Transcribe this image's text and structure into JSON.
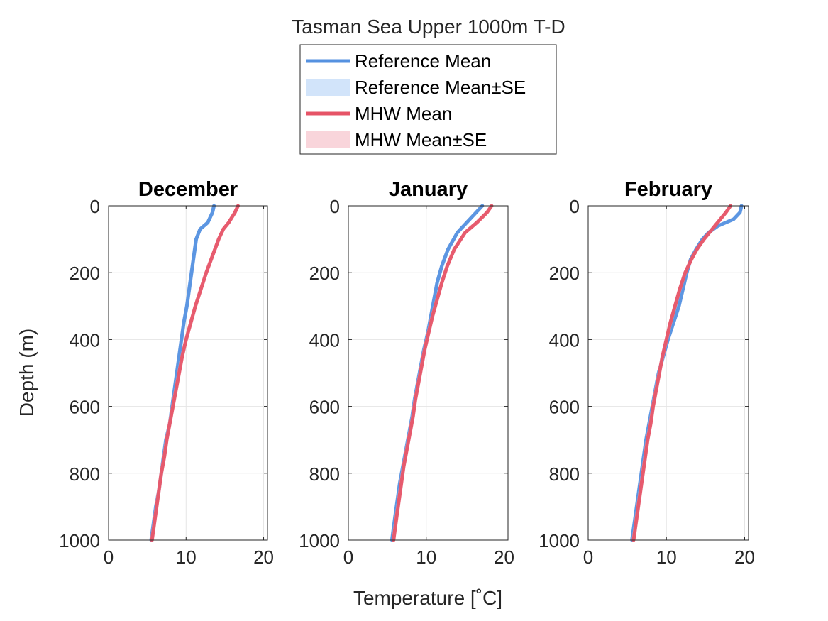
{
  "figure": {
    "title": "Tasman Sea Upper 1000m T-D",
    "xlabel": "Temperature [˚C]",
    "ylabel": "Depth (m)"
  },
  "legend": {
    "placement": "top-center",
    "entries": [
      {
        "label": "Reference Mean",
        "kind": "line",
        "color": "#5591E0"
      },
      {
        "label": "Reference Mean±SE",
        "kind": "patch",
        "color": "#D2E4FA"
      },
      {
        "label": "MHW Mean",
        "kind": "line",
        "color": "#E65467"
      },
      {
        "label": "MHW Mean±SE",
        "kind": "patch",
        "color": "#F9D5DB"
      }
    ]
  },
  "colors": {
    "reference": "#5591E0",
    "reference_se": "#C9DDF7",
    "mhw": "#E65467",
    "mhw_se": "#F6CDD4",
    "grid": "#E5E5E5",
    "axis": "#262626"
  },
  "chart_data": [
    {
      "type": "line",
      "title": "December",
      "xlim": [
        0,
        20.5
      ],
      "ylim": [
        0,
        1000
      ],
      "y_reversed": true,
      "grid": true,
      "xticks": [
        0,
        10,
        20
      ],
      "yticks": [
        0,
        200,
        400,
        600,
        800,
        1000
      ],
      "series": [
        {
          "name": "Reference Mean",
          "depth": [
            0,
            20,
            50,
            70,
            100,
            150,
            200,
            250,
            300,
            350,
            400,
            450,
            500,
            550,
            600,
            650,
            700,
            750,
            800,
            850,
            900,
            950,
            1000
          ],
          "temp": [
            13.6,
            13.4,
            12.8,
            11.8,
            11.3,
            11.0,
            10.7,
            10.4,
            10.1,
            9.7,
            9.4,
            9.1,
            8.8,
            8.5,
            8.2,
            7.9,
            7.4,
            7.1,
            6.8,
            6.5,
            6.1,
            5.8,
            5.5
          ]
        },
        {
          "name": "MHW Mean",
          "depth": [
            0,
            20,
            50,
            70,
            100,
            150,
            200,
            250,
            300,
            350,
            400,
            450,
            500,
            550,
            600,
            650,
            700,
            750,
            800,
            850,
            900,
            950,
            1000
          ],
          "temp": [
            16.7,
            16.3,
            15.5,
            14.8,
            14.2,
            13.4,
            12.6,
            11.9,
            11.2,
            10.6,
            10.0,
            9.5,
            9.1,
            8.7,
            8.3,
            7.9,
            7.5,
            7.2,
            6.8,
            6.5,
            6.2,
            5.9,
            5.6
          ]
        }
      ]
    },
    {
      "type": "line",
      "title": "January",
      "xlim": [
        0,
        20.5
      ],
      "ylim": [
        0,
        1000
      ],
      "y_reversed": true,
      "grid": true,
      "xticks": [
        0,
        10,
        20
      ],
      "yticks": [
        0,
        200,
        400,
        600,
        800,
        1000
      ],
      "series": [
        {
          "name": "Reference Mean",
          "depth": [
            0,
            20,
            50,
            80,
            130,
            180,
            230,
            280,
            330,
            380,
            430,
            480,
            530,
            580,
            630,
            680,
            730,
            780,
            830,
            880,
            930,
            1000
          ],
          "temp": [
            17.2,
            16.4,
            15.2,
            14.0,
            12.8,
            12.0,
            11.4,
            11.0,
            10.6,
            10.2,
            9.7,
            9.3,
            8.9,
            8.5,
            8.2,
            7.8,
            7.4,
            7.0,
            6.6,
            6.3,
            6.0,
            5.6
          ]
        },
        {
          "name": "MHW Mean",
          "depth": [
            0,
            20,
            50,
            80,
            130,
            180,
            230,
            280,
            330,
            380,
            430,
            480,
            530,
            580,
            630,
            680,
            730,
            780,
            830,
            880,
            930,
            1000
          ],
          "temp": [
            18.4,
            17.8,
            16.5,
            15.0,
            13.6,
            12.7,
            12.0,
            11.4,
            10.8,
            10.3,
            9.8,
            9.4,
            9.0,
            8.6,
            8.3,
            7.9,
            7.5,
            7.1,
            6.8,
            6.5,
            6.2,
            5.8
          ]
        }
      ]
    },
    {
      "type": "line",
      "title": "February",
      "xlim": [
        0,
        20.5
      ],
      "ylim": [
        0,
        1000
      ],
      "y_reversed": true,
      "grid": true,
      "xticks": [
        0,
        10,
        20
      ],
      "yticks": [
        0,
        200,
        400,
        600,
        800,
        1000
      ],
      "series": [
        {
          "name": "Reference Mean",
          "depth": [
            0,
            20,
            40,
            60,
            80,
            100,
            130,
            160,
            200,
            250,
            300,
            350,
            400,
            450,
            500,
            550,
            600,
            650,
            700,
            750,
            800,
            850,
            900,
            950,
            1000
          ],
          "temp": [
            19.6,
            19.4,
            18.6,
            16.6,
            15.4,
            14.6,
            13.8,
            13.1,
            12.6,
            12.1,
            11.6,
            10.9,
            10.2,
            9.6,
            9.0,
            8.6,
            8.2,
            7.8,
            7.4,
            7.1,
            6.8,
            6.5,
            6.2,
            5.9,
            5.6
          ]
        },
        {
          "name": "MHW Mean",
          "depth": [
            0,
            20,
            40,
            60,
            80,
            100,
            130,
            160,
            200,
            250,
            300,
            350,
            400,
            450,
            500,
            550,
            600,
            650,
            700,
            750,
            800,
            850,
            900,
            950,
            1000
          ],
          "temp": [
            18.2,
            17.6,
            16.9,
            16.2,
            15.5,
            14.8,
            13.9,
            13.2,
            12.4,
            11.7,
            11.1,
            10.5,
            10.0,
            9.5,
            9.1,
            8.7,
            8.3,
            8.0,
            7.6,
            7.3,
            7.0,
            6.7,
            6.4,
            6.1,
            5.8
          ]
        }
      ]
    }
  ]
}
